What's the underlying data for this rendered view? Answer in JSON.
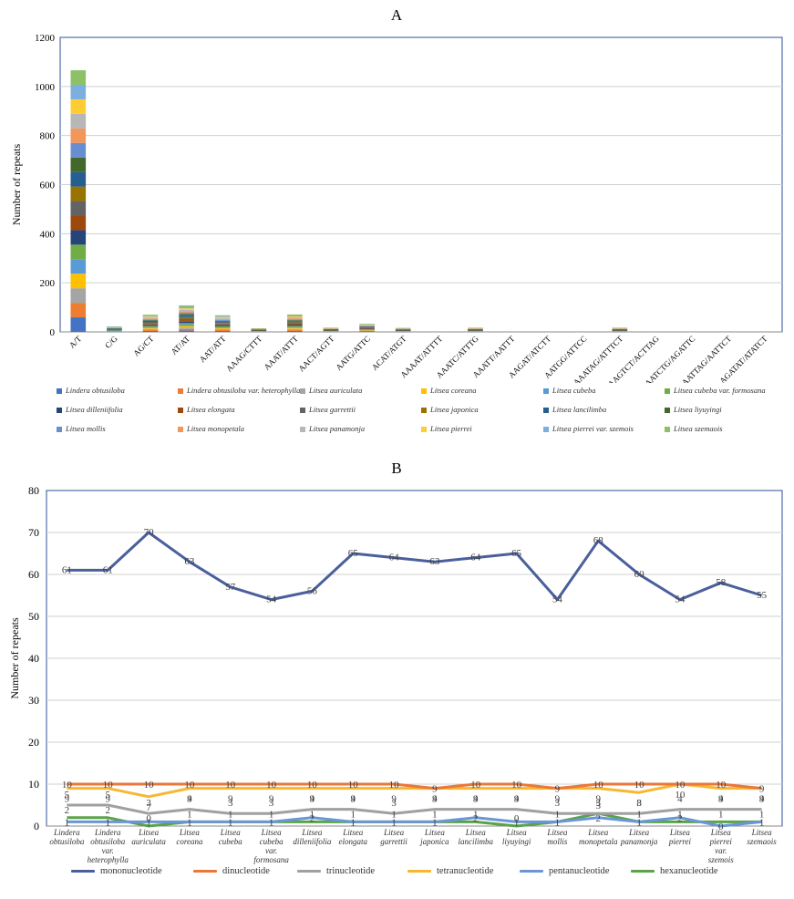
{
  "chart_data": [
    {
      "panel": "A",
      "type": "bar",
      "stacked": true,
      "title": "A",
      "xlabel": "",
      "ylabel": "Number of repeats",
      "ylim": [
        0,
        1200
      ],
      "yticks": [
        0,
        200,
        400,
        600,
        800,
        1000,
        1200
      ],
      "grid": true,
      "categories": [
        "A/T",
        "C/G",
        "AG/CT",
        "AT/AT",
        "AAT/ATT",
        "AAAG/CTTT",
        "AAAT/ATTT",
        "AACT/AGTT",
        "AATG/ATTC",
        "ACAT/ATGT",
        "AAAAT/ATTTT",
        "AAATC/ATTTG",
        "AAATT/AATTT",
        "AAGAT/ATCTT",
        "AATGG/ATTCC",
        "AAATAG/ATTTCT",
        "AAGTCT/ACTTAG",
        "AATCTG/AGATTC",
        "AATTAG/AATTCT",
        "AGATAT/ATATCT"
      ],
      "totals": [
        1066,
        22,
        70,
        108,
        68,
        15,
        71,
        17,
        33,
        16,
        0,
        17,
        0,
        0,
        0,
        17,
        0,
        0,
        0,
        0
      ],
      "series": [
        {
          "name": "Lindera obtusiloba",
          "color": "#4472c4"
        },
        {
          "name": "Lindera obtusiloba var. heterophylla",
          "color": "#ed7d31"
        },
        {
          "name": "Litsea auriculata",
          "color": "#a5a5a5"
        },
        {
          "name": "Litsea coreana",
          "color": "#ffc000"
        },
        {
          "name": "Litsea cubeba",
          "color": "#5b9bd5"
        },
        {
          "name": "Litsea cubeba var. formosana",
          "color": "#70ad47"
        },
        {
          "name": "Litsea dilleniifolia",
          "color": "#264478"
        },
        {
          "name": "Litsea elongata",
          "color": "#9e480e"
        },
        {
          "name": "Litsea garrettii",
          "color": "#636363"
        },
        {
          "name": "Litsea japonica",
          "color": "#997300"
        },
        {
          "name": "Litsea lancilimba",
          "color": "#255e91"
        },
        {
          "name": "Litsea liyuyingi",
          "color": "#43682b"
        },
        {
          "name": "Litsea mollis",
          "color": "#698ed0"
        },
        {
          "name": "Litsea monopetala",
          "color": "#f1975a"
        },
        {
          "name": "Litsea panamonja",
          "color": "#b7b7b7"
        },
        {
          "name": "Litsea pierrei",
          "color": "#ffcd33"
        },
        {
          "name": "Litsea pierrei var. szemois",
          "color": "#7cafdd"
        },
        {
          "name": "Litsea szemaois",
          "color": "#8cc168"
        }
      ]
    },
    {
      "panel": "B",
      "type": "line",
      "title": "B",
      "xlabel": "",
      "ylabel": "Number of repeats",
      "ylim": [
        0,
        80
      ],
      "yticks": [
        0,
        10,
        20,
        30,
        40,
        50,
        60,
        70,
        80
      ],
      "grid": true,
      "categories": [
        [
          "Lindera",
          "obtusiloba"
        ],
        [
          "Lindera",
          "obtusiloba",
          "var.",
          "heterophylla"
        ],
        [
          "Litsea",
          "auriculata"
        ],
        [
          "Litsea",
          "coreana"
        ],
        [
          "Litsea",
          "cubeba"
        ],
        [
          "Litsea",
          "cubeba",
          "var.",
          "formosana"
        ],
        [
          "Litsea",
          "dilleniifolia"
        ],
        [
          "Litsea",
          "elongata"
        ],
        [
          "Litsea",
          "garrettii"
        ],
        [
          "Litsea",
          "japonica"
        ],
        [
          "Litsea",
          "lancilimba"
        ],
        [
          "Litsea",
          "liyuyingi"
        ],
        [
          "Litsea",
          "mollis"
        ],
        [
          "Litsea",
          "monopetala"
        ],
        [
          "Litsea",
          "panamonja"
        ],
        [
          "Litsea",
          "pierrei"
        ],
        [
          "Litsea",
          "pierrei",
          "var.",
          "szemois"
        ],
        [
          "Litsea",
          "szemaois"
        ]
      ],
      "series": [
        {
          "name": "mononucleotide",
          "color": "#4a5f9c",
          "values": [
            61,
            61,
            70,
            63,
            57,
            54,
            56,
            65,
            64,
            63,
            64,
            65,
            54,
            68,
            60,
            54,
            58,
            55
          ]
        },
        {
          "name": "dinucleotide",
          "color": "#e9783a",
          "values": [
            10,
            10,
            10,
            10,
            10,
            10,
            10,
            10,
            10,
            9,
            10,
            10,
            9,
            10,
            10,
            10,
            10,
            9
          ]
        },
        {
          "name": "trinucleotide",
          "color": "#a0a0a0",
          "values": [
            5,
            5,
            3,
            4,
            3,
            3,
            4,
            4,
            3,
            4,
            4,
            4,
            3,
            3,
            3,
            4,
            4,
            4
          ]
        },
        {
          "name": "tetranucleotide",
          "color": "#f7b731",
          "values": [
            9,
            9,
            7,
            9,
            9,
            9,
            9,
            9,
            9,
            9,
            9,
            9,
            9,
            9,
            8,
            10,
            9,
            9
          ]
        },
        {
          "name": "pentanucleotide",
          "color": "#6b96d6",
          "values": [
            1,
            1,
            1,
            1,
            1,
            1,
            2,
            1,
            1,
            1,
            2,
            1,
            1,
            2,
            1,
            2,
            0,
            1
          ]
        },
        {
          "name": "hexanucleotide",
          "color": "#5aa34a",
          "values": [
            2,
            2,
            0,
            1,
            1,
            1,
            1,
            1,
            1,
            1,
            1,
            0,
            1,
            3,
            1,
            1,
            1,
            1
          ]
        }
      ]
    }
  ]
}
